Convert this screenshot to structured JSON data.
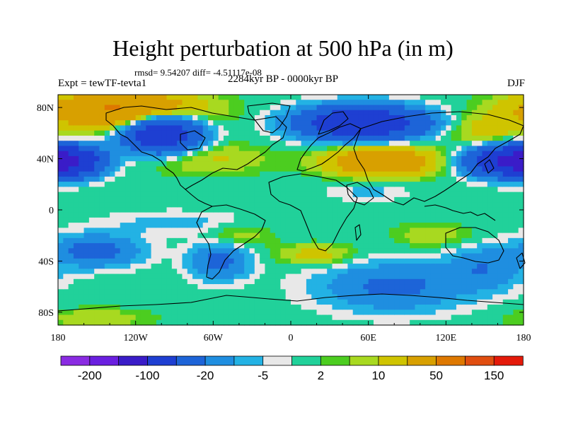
{
  "title": "Height perturbation at 500 hPa (in m)",
  "stats_text": "rmsd= 9.54207 diff= -4.51117e-08",
  "left_label": "Expt = tewTF-tevta1",
  "center_label": "2284kyr BP - 0000kyr BP",
  "right_label": "DJF",
  "map": {
    "projection": "cylindrical-equidistant",
    "lon_range": [
      -180,
      180
    ],
    "lat_range": [
      -90,
      90
    ],
    "x_ticks": [
      {
        "lon": -180,
        "label": "180"
      },
      {
        "lon": -120,
        "label": "120W"
      },
      {
        "lon": -60,
        "label": "60W"
      },
      {
        "lon": 0,
        "label": "0"
      },
      {
        "lon": 60,
        "label": "60E"
      },
      {
        "lon": 120,
        "label": "120E"
      },
      {
        "lon": 180,
        "label": "180"
      }
    ],
    "y_ticks": [
      {
        "lat": 80,
        "label": "80N"
      },
      {
        "lat": 40,
        "label": "40N"
      },
      {
        "lat": 0,
        "label": "0"
      },
      {
        "lat": -40,
        "label": "40S"
      },
      {
        "lat": -80,
        "label": "80S"
      }
    ]
  },
  "colorbar": {
    "colors": [
      "#8a2be2",
      "#6a1fe0",
      "#3a1cc8",
      "#1e3fd2",
      "#1d64d8",
      "#1f8ee0",
      "#23b2e4",
      "#e8e8e8",
      "#21d19a",
      "#4ccd20",
      "#a8d920",
      "#cfc400",
      "#d8a000",
      "#de7800",
      "#e04e10",
      "#e41a0a"
    ],
    "labels": [
      {
        "after_index": 0,
        "text": "-200"
      },
      {
        "after_index": 2,
        "text": "-100"
      },
      {
        "after_index": 4,
        "text": "-20"
      },
      {
        "after_index": 6,
        "text": "-5"
      },
      {
        "after_index": 8,
        "text": "2"
      },
      {
        "after_index": 10,
        "text": "10"
      },
      {
        "after_index": 12,
        "text": "50"
      },
      {
        "after_index": 14,
        "text": "150"
      }
    ]
  },
  "field_blobs": [
    {
      "lon": -100,
      "lat": 60,
      "rlon": 28,
      "rlat": 14,
      "amp": -95
    },
    {
      "lon": 55,
      "lat": 68,
      "rlon": 45,
      "rlat": 12,
      "amp": -100
    },
    {
      "lon": -170,
      "lat": 38,
      "rlon": 24,
      "rlat": 11,
      "amp": -90
    },
    {
      "lon": 165,
      "lat": 38,
      "rlon": 28,
      "rlat": 11,
      "amp": -90
    },
    {
      "lon": -130,
      "lat": 78,
      "rlon": 55,
      "rlat": 14,
      "amp": 55
    },
    {
      "lon": -65,
      "lat": 40,
      "rlon": 45,
      "rlat": 12,
      "amp": 12
    },
    {
      "lon": 70,
      "lat": 38,
      "rlon": 40,
      "rlat": 11,
      "amp": 45
    },
    {
      "lon": 150,
      "lat": 62,
      "rlon": 30,
      "rlat": 12,
      "amp": 14
    },
    {
      "lon": -150,
      "lat": -32,
      "rlon": 32,
      "rlat": 12,
      "amp": -28
    },
    {
      "lon": -55,
      "lat": -40,
      "rlon": 22,
      "rlat": 14,
      "amp": -25
    },
    {
      "lon": 20,
      "lat": -35,
      "rlon": 28,
      "rlat": 8,
      "amp": 14
    },
    {
      "lon": 80,
      "lat": -60,
      "rlon": 55,
      "rlat": 18,
      "amp": -24
    },
    {
      "lon": 150,
      "lat": -45,
      "rlon": 28,
      "rlat": 16,
      "amp": -18
    },
    {
      "lon": -90,
      "lat": -10,
      "rlon": 55,
      "rlat": 9,
      "amp": -7
    },
    {
      "lon": 110,
      "lat": -20,
      "rlon": 30,
      "rlat": 9,
      "amp": 9
    },
    {
      "lon": -40,
      "lat": -20,
      "rlon": 25,
      "rlat": 9,
      "amp": 9
    },
    {
      "lon": -150,
      "lat": -85,
      "rlon": 40,
      "rlat": 8,
      "amp": 9
    },
    {
      "lon": 60,
      "lat": 15,
      "rlon": 30,
      "rlat": 8,
      "amp": -7
    }
  ]
}
